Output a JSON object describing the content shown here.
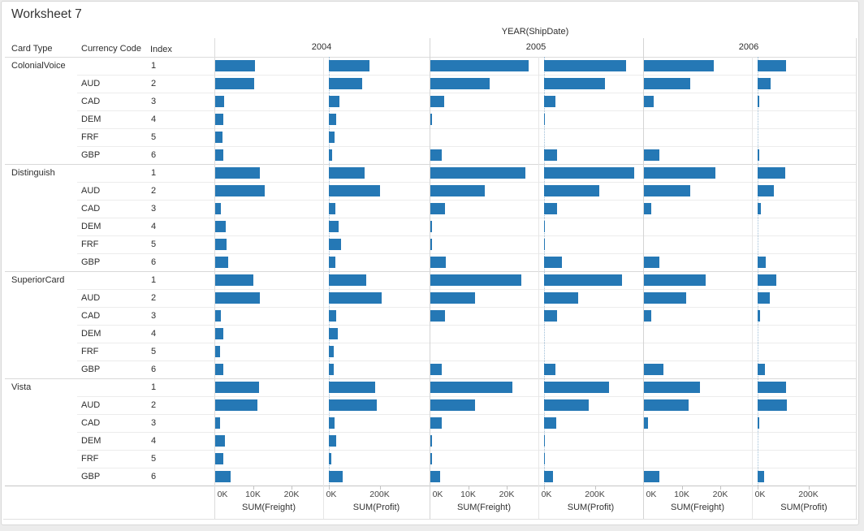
{
  "chart_data": {
    "type": "bar",
    "title": "Worksheet 7",
    "col_axis": {
      "title": "YEAR(ShipDate)",
      "years": [
        "2004",
        "2005",
        "2006"
      ]
    },
    "row_fields": [
      "Card Type",
      "Currency Code",
      "Index"
    ],
    "measures": [
      "SUM(Freight)",
      "SUM(Profit)"
    ],
    "freight_axis": {
      "tick_labels": [
        "0K",
        "10K",
        "20K"
      ],
      "tick_values": [
        0,
        10000,
        20000
      ],
      "range": [
        0,
        28000
      ]
    },
    "profit_axis": {
      "tick_labels": [
        "0K",
        "200K"
      ],
      "tick_values": [
        0,
        200000
      ],
      "range": [
        0,
        390000
      ]
    },
    "colors": {
      "bar": "#2578b5"
    },
    "groups": [
      {
        "card_type": "ColonialVoice",
        "rows": [
          {
            "currency": "",
            "index": "1",
            "freight": [
              10300,
              25500,
              18000
            ],
            "profit": [
              160000,
              322000,
              113000
            ]
          },
          {
            "currency": "AUD",
            "index": "2",
            "freight": [
              10100,
              15400,
              12100
            ],
            "profit": [
              131000,
              239000,
              52000
            ]
          },
          {
            "currency": "CAD",
            "index": "3",
            "freight": [
              2300,
              3500,
              2500
            ],
            "profit": [
              43000,
              46000,
              6000
            ]
          },
          {
            "currency": "DEM",
            "index": "4",
            "freight": [
              2100,
              400,
              0
            ],
            "profit": [
              29000,
              3000,
              0
            ]
          },
          {
            "currency": "FRF",
            "index": "5",
            "freight": [
              1900,
              0,
              0
            ],
            "profit": [
              23000,
              0,
              0
            ]
          },
          {
            "currency": "GBP",
            "index": "6",
            "freight": [
              2100,
              2900,
              4000
            ],
            "profit": [
              13000,
              50000,
              6000
            ]
          }
        ]
      },
      {
        "card_type": "Distinguish",
        "rows": [
          {
            "currency": "",
            "index": "1",
            "freight": [
              11600,
              24600,
              18500
            ],
            "profit": [
              140000,
              356000,
              110000
            ]
          },
          {
            "currency": "AUD",
            "index": "2",
            "freight": [
              12800,
              14100,
              11900
            ],
            "profit": [
              201000,
              217000,
              63000
            ]
          },
          {
            "currency": "CAD",
            "index": "3",
            "freight": [
              1500,
              3800,
              1900
            ],
            "profit": [
              26000,
              51000,
              14000
            ]
          },
          {
            "currency": "DEM",
            "index": "4",
            "freight": [
              2700,
              400,
              0
            ],
            "profit": [
              38000,
              3000,
              0
            ]
          },
          {
            "currency": "FRF",
            "index": "5",
            "freight": [
              2900,
              400,
              0
            ],
            "profit": [
              47000,
              3000,
              0
            ]
          },
          {
            "currency": "GBP",
            "index": "6",
            "freight": [
              3400,
              3900,
              3900
            ],
            "profit": [
              27000,
              70000,
              32000
            ]
          }
        ]
      },
      {
        "card_type": "SuperiorCard",
        "rows": [
          {
            "currency": "",
            "index": "1",
            "freight": [
              9900,
              23500,
              16100
            ],
            "profit": [
              147000,
              306000,
              73000
            ]
          },
          {
            "currency": "AUD",
            "index": "2",
            "freight": [
              11600,
              11600,
              10900
            ],
            "profit": [
              207000,
              135000,
              48000
            ]
          },
          {
            "currency": "CAD",
            "index": "3",
            "freight": [
              1500,
              3800,
              1900
            ],
            "profit": [
              30000,
              52000,
              11000
            ]
          },
          {
            "currency": "DEM",
            "index": "4",
            "freight": [
              2000,
              0,
              0
            ],
            "profit": [
              35000,
              0,
              0
            ]
          },
          {
            "currency": "FRF",
            "index": "5",
            "freight": [
              1200,
              0,
              0
            ],
            "profit": [
              20000,
              0,
              0
            ]
          },
          {
            "currency": "GBP",
            "index": "6",
            "freight": [
              2000,
              2900,
              5100
            ],
            "profit": [
              19000,
              44000,
              29000
            ]
          }
        ]
      },
      {
        "card_type": "Vista",
        "rows": [
          {
            "currency": "",
            "index": "1",
            "freight": [
              11400,
              21300,
              14600
            ],
            "profit": [
              183000,
              257000,
              113000
            ]
          },
          {
            "currency": "AUD",
            "index": "2",
            "freight": [
              10900,
              11600,
              11500
            ],
            "profit": [
              188000,
              175000,
              116000
            ]
          },
          {
            "currency": "CAD",
            "index": "3",
            "freight": [
              1300,
              3000,
              1100
            ],
            "profit": [
              21000,
              48000,
              5000
            ]
          },
          {
            "currency": "DEM",
            "index": "4",
            "freight": [
              2500,
              400,
              0
            ],
            "profit": [
              29000,
              2000,
              0
            ]
          },
          {
            "currency": "FRF",
            "index": "5",
            "freight": [
              2000,
              400,
              0
            ],
            "profit": [
              10000,
              3000,
              0
            ]
          },
          {
            "currency": "GBP",
            "index": "6",
            "freight": [
              4000,
              2500,
              4100
            ],
            "profit": [
              53000,
              35000,
              26000
            ]
          }
        ]
      }
    ]
  }
}
